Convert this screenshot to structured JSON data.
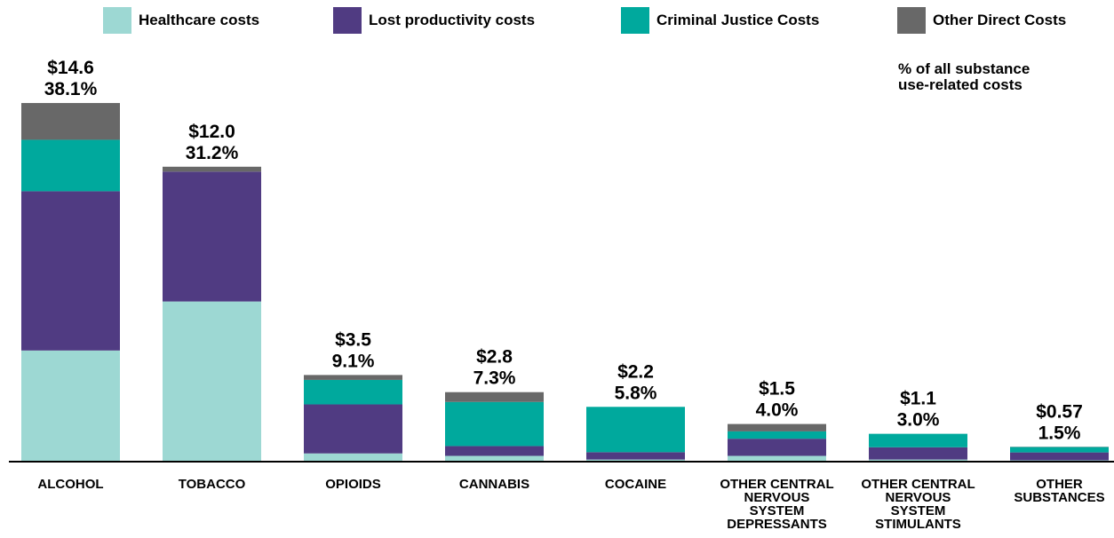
{
  "legend": [
    {
      "label": "Healthcare costs",
      "color": "#9dd8d3"
    },
    {
      "label": "Lost productivity costs",
      "color": "#503b82"
    },
    {
      "label": "Criminal Justice Costs",
      "color": "#00a99d"
    },
    {
      "label": "Other Direct Costs",
      "color": "#686868"
    }
  ],
  "note": "% of all substance use-related costs",
  "chart_data": {
    "type": "bar",
    "stacked": true,
    "categories": [
      "ALCOHOL",
      "TOBACCO",
      "OPIOIDS",
      "CANNABIS",
      "COCAINE",
      "OTHER CENTRAL NERVOUS SYSTEM DEPRESSANTS",
      "OTHER CENTRAL NERVOUS SYSTEM STIMULANTS",
      "OTHER SUBSTANCES"
    ],
    "series": [
      {
        "name": "Healthcare costs",
        "values": [
          4.5,
          6.5,
          0.3,
          0.2,
          0.05,
          0.2,
          0.05,
          0.02
        ]
      },
      {
        "name": "Lost productivity costs",
        "values": [
          6.5,
          5.3,
          2.0,
          0.4,
          0.3,
          0.7,
          0.5,
          0.32
        ]
      },
      {
        "name": "Criminal Justice Costs",
        "values": [
          2.1,
          0.0,
          1.0,
          1.8,
          1.85,
          0.3,
          0.55,
          0.22
        ]
      },
      {
        "name": "Other Direct Costs",
        "values": [
          1.5,
          0.2,
          0.2,
          0.4,
          0.0,
          0.3,
          0.0,
          0.01
        ]
      }
    ],
    "totals": [
      "$14.6",
      "$12.0",
      "$3.5",
      "$2.8",
      "$2.2",
      "$1.5",
      "$1.1",
      "$0.57"
    ],
    "percents": [
      "38.1%",
      "31.2%",
      "9.1%",
      "7.3%",
      "5.8%",
      "4.0%",
      "3.0%",
      "1.5%"
    ],
    "ylim": [
      0,
      16
    ],
    "grid": false
  }
}
